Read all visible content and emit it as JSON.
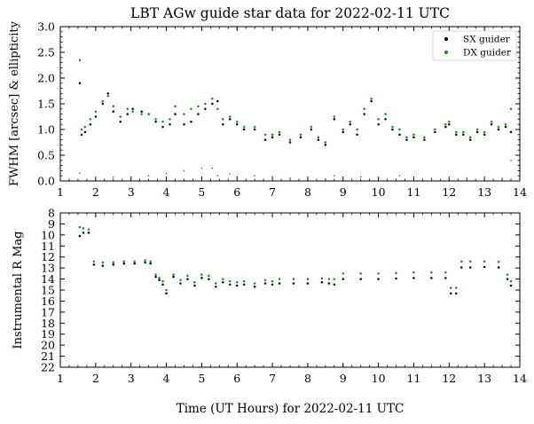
{
  "title": "LBT AGw guide star data for 2022-02-11 UTC",
  "xlabel": "Time (UT Hours) for 2022-02-11 UTC",
  "colors": {
    "sx": "#000000",
    "dx": "#1a8a1a"
  },
  "chart_data": [
    {
      "type": "scatter",
      "title": "LBT AGw guide star data for 2022-02-11 UTC",
      "ylabel": "FWHM [arcsec] & ellipticity",
      "xlim": [
        1,
        14
      ],
      "ylim": [
        0,
        3.0
      ],
      "xticks": [
        "1",
        "2",
        "3",
        "4",
        "5",
        "6",
        "7",
        "8",
        "9",
        "10",
        "11",
        "12",
        "13",
        "14"
      ],
      "yticks": [
        "0.0",
        "0.5",
        "1.0",
        "1.5",
        "2.0",
        "2.5",
        "3.0"
      ],
      "legend": {
        "position": "top-right",
        "entries": [
          "SX guider",
          "DX guider"
        ]
      },
      "series": [
        {
          "name": "SX guider",
          "color": "#000000",
          "x": [
            1.55,
            1.6,
            1.7,
            1.85,
            2.0,
            2.2,
            2.35,
            2.5,
            2.7,
            2.9,
            3.05,
            3.3,
            3.5,
            3.7,
            3.9,
            4.1,
            4.25,
            4.5,
            4.7,
            4.9,
            5.1,
            5.3,
            5.45,
            5.6,
            5.8,
            6.0,
            6.2,
            6.5,
            6.8,
            7.0,
            7.2,
            7.5,
            7.8,
            8.1,
            8.3,
            8.5,
            8.75,
            9.0,
            9.2,
            9.4,
            9.6,
            9.8,
            10.0,
            10.2,
            10.4,
            10.6,
            10.8,
            11.0,
            11.3,
            11.6,
            11.9,
            12.0,
            12.2,
            12.4,
            12.6,
            12.8,
            13.0,
            13.2,
            13.4,
            13.6,
            13.75
          ],
          "y": [
            1.9,
            0.9,
            0.95,
            1.1,
            1.25,
            1.5,
            1.7,
            1.35,
            1.15,
            1.3,
            1.4,
            1.35,
            1.3,
            1.15,
            1.05,
            1.1,
            1.3,
            1.1,
            1.15,
            1.3,
            1.4,
            1.5,
            1.55,
            1.1,
            1.2,
            1.1,
            1.0,
            1.0,
            0.8,
            0.85,
            0.9,
            0.75,
            0.85,
            1.0,
            0.8,
            0.7,
            1.2,
            0.95,
            1.1,
            0.9,
            1.3,
            1.55,
            1.1,
            1.2,
            1.0,
            0.9,
            0.8,
            0.85,
            0.8,
            0.95,
            1.05,
            1.1,
            0.9,
            0.9,
            0.8,
            0.95,
            0.9,
            1.1,
            1.0,
            1.05,
            0.95
          ]
        },
        {
          "name": "DX guider",
          "color": "#1a8a1a",
          "x": [
            1.55,
            1.6,
            1.7,
            1.85,
            2.0,
            2.2,
            2.35,
            2.5,
            2.7,
            2.9,
            3.05,
            3.3,
            3.5,
            3.7,
            3.9,
            4.1,
            4.25,
            4.5,
            4.7,
            4.9,
            5.1,
            5.3,
            5.45,
            5.6,
            5.8,
            6.0,
            6.2,
            6.5,
            6.8,
            7.0,
            7.2,
            7.5,
            7.8,
            8.1,
            8.3,
            8.5,
            8.75,
            9.0,
            9.2,
            9.4,
            9.6,
            9.8,
            10.0,
            10.2,
            10.4,
            10.6,
            10.8,
            11.0,
            11.3,
            11.6,
            11.9,
            12.0,
            12.2,
            12.4,
            12.6,
            12.8,
            13.0,
            13.2,
            13.4,
            13.6,
            13.75
          ],
          "y": [
            2.35,
            1.0,
            1.05,
            1.2,
            1.35,
            1.55,
            1.65,
            1.45,
            1.25,
            1.4,
            1.35,
            1.3,
            1.3,
            1.2,
            1.15,
            1.2,
            1.45,
            1.3,
            1.4,
            1.45,
            1.5,
            1.6,
            1.4,
            1.2,
            1.25,
            1.15,
            1.05,
            1.05,
            0.9,
            0.9,
            0.95,
            0.8,
            0.9,
            1.05,
            0.85,
            0.75,
            1.25,
            1.0,
            1.15,
            1.0,
            1.4,
            1.6,
            1.2,
            1.3,
            1.05,
            1.0,
            0.85,
            0.9,
            0.85,
            1.0,
            1.1,
            1.15,
            0.95,
            0.95,
            0.85,
            1.0,
            0.95,
            1.15,
            1.05,
            1.1,
            1.4
          ]
        },
        {
          "name": "",
          "color": "#1a8a1a",
          "x": [
            1.55,
            2.0,
            2.5,
            3.0,
            3.5,
            4.0,
            4.5,
            5.0,
            5.3,
            5.45,
            5.8,
            6.5,
            7.0,
            7.5,
            8.0,
            8.5,
            8.75,
            9.5,
            10.0,
            10.6,
            11.0,
            11.5,
            12.0,
            12.5,
            13.0,
            13.5,
            13.75
          ],
          "y": [
            0.15,
            0.06,
            0.07,
            0.08,
            0.1,
            0.15,
            0.2,
            0.25,
            0.25,
            0.1,
            0.14,
            0.1,
            0.08,
            0.06,
            0.05,
            0.04,
            0.1,
            0.08,
            0.07,
            0.1,
            0.06,
            0.05,
            0.06,
            0.06,
            0.05,
            0.05,
            0.4
          ]
        }
      ]
    },
    {
      "type": "scatter",
      "ylabel": "Instrumental R Mag",
      "xlim": [
        1,
        14
      ],
      "ylim": [
        22,
        8
      ],
      "yaxis_inverted": true,
      "xticks": [
        "1",
        "2",
        "3",
        "4",
        "5",
        "6",
        "7",
        "8",
        "9",
        "10",
        "11",
        "12",
        "13",
        "14"
      ],
      "yticks": [
        "8",
        "9",
        "10",
        "11",
        "12",
        "13",
        "14",
        "15",
        "16",
        "17",
        "18",
        "19",
        "20",
        "21",
        "22"
      ],
      "series": [
        {
          "name": "SX guider",
          "color": "#000000",
          "x": [
            1.55,
            1.65,
            1.8,
            1.95,
            2.2,
            2.5,
            2.8,
            3.1,
            3.4,
            3.55,
            3.7,
            3.8,
            3.9,
            4.0,
            4.2,
            4.4,
            4.6,
            4.8,
            5.0,
            5.2,
            5.4,
            5.6,
            5.8,
            6.0,
            6.2,
            6.5,
            6.8,
            7.0,
            7.2,
            7.6,
            8.0,
            8.4,
            8.6,
            8.75,
            9.0,
            9.5,
            10.0,
            10.5,
            11.0,
            11.5,
            11.9,
            12.05,
            12.2,
            12.35,
            12.6,
            13.0,
            13.4,
            13.65,
            13.75
          ],
          "y": [
            10.1,
            9.8,
            9.8,
            12.7,
            12.8,
            12.7,
            12.6,
            12.6,
            12.5,
            12.6,
            13.8,
            14.1,
            14.5,
            15.3,
            13.8,
            14.4,
            14.0,
            14.6,
            13.9,
            14.0,
            14.7,
            14.3,
            14.5,
            14.6,
            14.5,
            14.7,
            14.4,
            14.5,
            14.4,
            14.4,
            14.4,
            14.3,
            14.4,
            14.5,
            14.0,
            14.0,
            14.0,
            13.95,
            13.9,
            13.9,
            13.9,
            15.3,
            15.3,
            12.95,
            12.95,
            12.9,
            12.95,
            14.0,
            14.6
          ]
        },
        {
          "name": "DX guider",
          "color": "#1a8a1a",
          "x": [
            1.55,
            1.65,
            1.8,
            1.95,
            2.2,
            2.5,
            2.8,
            3.1,
            3.4,
            3.55,
            3.7,
            3.8,
            3.9,
            4.0,
            4.2,
            4.4,
            4.6,
            4.8,
            5.0,
            5.2,
            5.4,
            5.6,
            5.8,
            6.0,
            6.2,
            6.5,
            6.8,
            7.0,
            7.2,
            7.6,
            8.0,
            8.4,
            8.6,
            8.75,
            9.0,
            9.5,
            10.0,
            10.5,
            11.0,
            11.5,
            11.9,
            12.05,
            12.2,
            12.35,
            12.6,
            13.0,
            13.4,
            13.65,
            13.75
          ],
          "y": [
            9.3,
            9.4,
            9.5,
            12.4,
            12.5,
            12.5,
            12.4,
            12.4,
            12.3,
            12.4,
            13.6,
            13.9,
            14.2,
            15.0,
            13.6,
            14.1,
            13.7,
            14.3,
            13.6,
            13.7,
            14.4,
            14.0,
            14.2,
            14.3,
            14.2,
            14.4,
            14.1,
            14.2,
            14.0,
            14.0,
            14.0,
            13.95,
            14.0,
            14.0,
            13.5,
            13.5,
            13.5,
            13.45,
            13.4,
            13.4,
            13.4,
            14.8,
            14.8,
            12.4,
            12.4,
            12.4,
            12.45,
            13.6,
            14.2
          ]
        }
      ]
    }
  ]
}
